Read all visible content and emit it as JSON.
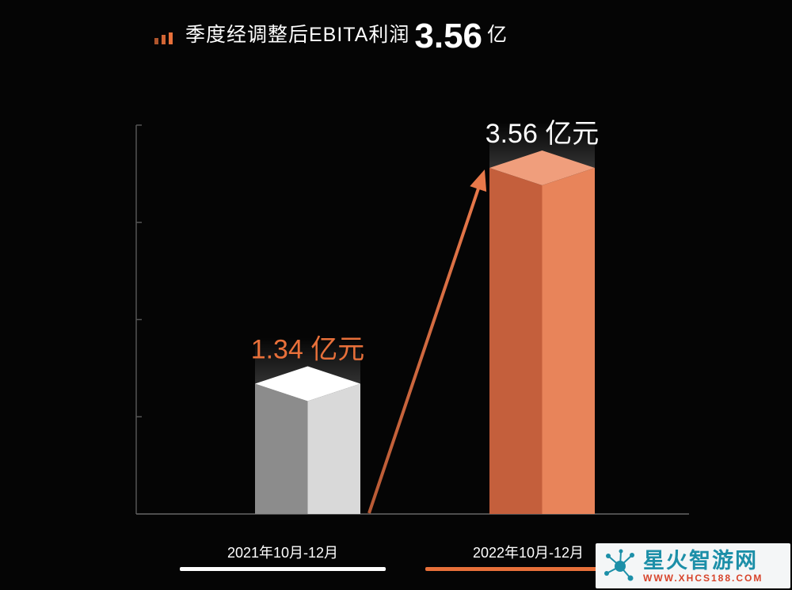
{
  "header": {
    "title": "季度经调整后EBITA利润",
    "value": "3.56",
    "unit": "亿"
  },
  "chart_data": {
    "type": "bar",
    "categories": [
      "2021年10月-12月",
      "2022年10月-12月"
    ],
    "values": [
      1.34,
      3.56
    ],
    "value_labels": [
      "1.34 亿元",
      "3.56 亿元"
    ],
    "title": "季度经调整后EBITA利润3.56亿",
    "xlabel": "",
    "ylabel": "",
    "ylim": [
      0,
      4
    ],
    "grid": false,
    "bar_colors": [
      "#d9d9d9",
      "#e8845a"
    ],
    "label_colors": [
      "#e8703a",
      "#ffffff"
    ]
  },
  "watermark": {
    "name": "星火智游网",
    "url": "WWW.XHCS188.COM"
  }
}
